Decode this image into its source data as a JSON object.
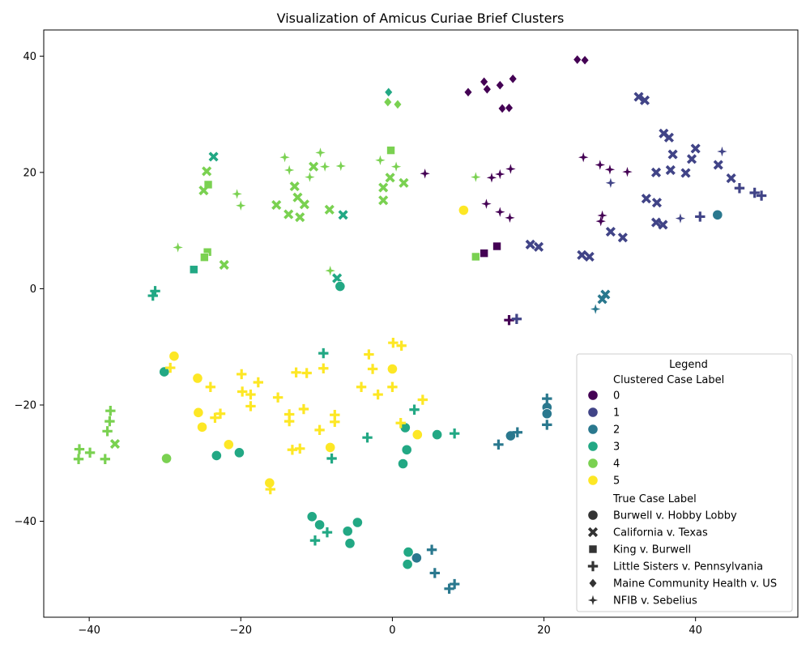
{
  "chart_data": {
    "type": "scatter",
    "title": "Visualization of Amicus Curiae Brief Clusters",
    "xlabel": "",
    "ylabel": "",
    "xlim": [
      -46,
      53.5
    ],
    "ylim": [
      -56.5,
      44.5
    ],
    "x_ticks": [
      -40,
      -20,
      0,
      20,
      40
    ],
    "y_ticks": [
      -40,
      -20,
      0,
      20,
      40
    ],
    "grid": false,
    "legend": {
      "title": "Legend",
      "placement": "lower-right",
      "hue_title": "Clustered Case Label",
      "style_title": "True Case Label"
    },
    "clusters": [
      {
        "label": "0",
        "color": "#440154"
      },
      {
        "label": "1",
        "color": "#414487"
      },
      {
        "label": "2",
        "color": "#2a788e"
      },
      {
        "label": "3",
        "color": "#22a884"
      },
      {
        "label": "4",
        "color": "#7ad151"
      },
      {
        "label": "5",
        "color": "#fde725"
      }
    ],
    "cases": [
      {
        "label": "Burwell v. Hobby Lobby",
        "marker": "circle"
      },
      {
        "label": "California v. Texas",
        "marker": "x"
      },
      {
        "label": "King v. Burwell",
        "marker": "square"
      },
      {
        "label": "Little Sisters v. Pennsylvania",
        "marker": "plus"
      },
      {
        "label": "Maine Community Health v. US",
        "marker": "diamond"
      },
      {
        "label": "NFIB v. Sebelius",
        "marker": "star"
      }
    ],
    "points": [
      [
        24.4,
        39.4,
        0,
        4
      ],
      [
        25.4,
        39.3,
        0,
        4
      ],
      [
        15.9,
        36.1,
        0,
        4
      ],
      [
        12.1,
        35.6,
        0,
        4
      ],
      [
        14.2,
        35.0,
        0,
        4
      ],
      [
        12.5,
        34.3,
        0,
        4
      ],
      [
        10.0,
        33.8,
        0,
        4
      ],
      [
        14.5,
        31.0,
        0,
        4
      ],
      [
        15.4,
        31.1,
        0,
        4
      ],
      [
        25.2,
        22.6,
        0,
        5
      ],
      [
        27.4,
        21.3,
        0,
        5
      ],
      [
        28.7,
        20.5,
        0,
        5
      ],
      [
        31.0,
        20.1,
        0,
        5
      ],
      [
        15.6,
        20.6,
        0,
        5
      ],
      [
        14.2,
        19.7,
        0,
        5
      ],
      [
        13.1,
        19.1,
        0,
        5
      ],
      [
        4.3,
        19.8,
        0,
        5
      ],
      [
        12.4,
        14.6,
        0,
        5
      ],
      [
        14.2,
        13.2,
        0,
        5
      ],
      [
        15.5,
        12.2,
        0,
        5
      ],
      [
        27.7,
        12.6,
        0,
        5
      ],
      [
        27.5,
        11.6,
        0,
        5
      ],
      [
        12.1,
        6.1,
        0,
        2
      ],
      [
        13.8,
        7.3,
        0,
        2
      ],
      [
        15.4,
        -5.4,
        0,
        3
      ],
      [
        32.5,
        33.0,
        1,
        1
      ],
      [
        33.3,
        32.4,
        1,
        1
      ],
      [
        35.8,
        26.7,
        1,
        1
      ],
      [
        36.5,
        26.0,
        1,
        1
      ],
      [
        37.0,
        23.1,
        1,
        1
      ],
      [
        40.0,
        24.1,
        1,
        1
      ],
      [
        39.5,
        22.3,
        1,
        1
      ],
      [
        34.8,
        20.0,
        1,
        1
      ],
      [
        36.7,
        20.4,
        1,
        1
      ],
      [
        38.7,
        19.9,
        1,
        1
      ],
      [
        43.0,
        21.3,
        1,
        1
      ],
      [
        44.7,
        19.0,
        1,
        1
      ],
      [
        43.5,
        23.6,
        1,
        5
      ],
      [
        28.8,
        18.2,
        1,
        5
      ],
      [
        33.5,
        15.5,
        1,
        1
      ],
      [
        34.9,
        14.8,
        1,
        1
      ],
      [
        34.8,
        11.4,
        1,
        1
      ],
      [
        35.7,
        11.0,
        1,
        1
      ],
      [
        38.0,
        12.1,
        1,
        5
      ],
      [
        40.6,
        12.4,
        1,
        3
      ],
      [
        45.8,
        17.3,
        1,
        3
      ],
      [
        47.8,
        16.5,
        1,
        3
      ],
      [
        48.7,
        16.0,
        1,
        3
      ],
      [
        18.2,
        7.6,
        1,
        1
      ],
      [
        19.3,
        7.2,
        1,
        1
      ],
      [
        25.0,
        5.8,
        1,
        1
      ],
      [
        26.0,
        5.5,
        1,
        1
      ],
      [
        28.8,
        9.8,
        1,
        1
      ],
      [
        30.4,
        8.8,
        1,
        1
      ],
      [
        16.4,
        -5.2,
        1,
        3
      ],
      [
        42.9,
        12.7,
        2,
        0
      ],
      [
        28.1,
        -1.0,
        2,
        1
      ],
      [
        27.7,
        -1.8,
        2,
        1
      ],
      [
        26.8,
        -3.5,
        2,
        5
      ],
      [
        20.4,
        -20.4,
        2,
        0
      ],
      [
        20.4,
        -21.5,
        2,
        0
      ],
      [
        15.6,
        -25.3,
        2,
        0
      ],
      [
        3.2,
        -46.3,
        2,
        0
      ],
      [
        20.4,
        -18.9,
        2,
        3
      ],
      [
        20.4,
        -23.4,
        2,
        3
      ],
      [
        16.5,
        -24.7,
        2,
        3
      ],
      [
        14.0,
        -26.8,
        2,
        3
      ],
      [
        5.2,
        -44.9,
        2,
        3
      ],
      [
        5.6,
        -48.9,
        2,
        3
      ],
      [
        8.2,
        -50.8,
        2,
        3
      ],
      [
        7.5,
        -51.6,
        2,
        3
      ],
      [
        -0.5,
        33.8,
        3,
        4
      ],
      [
        -23.6,
        22.7,
        3,
        1
      ],
      [
        -6.5,
        12.7,
        3,
        1
      ],
      [
        -7.3,
        1.8,
        3,
        1
      ],
      [
        -26.2,
        3.3,
        3,
        2
      ],
      [
        -31.3,
        -0.4,
        3,
        3
      ],
      [
        -31.6,
        -1.2,
        3,
        3
      ],
      [
        -6.9,
        0.4,
        3,
        0
      ],
      [
        -30.1,
        -14.3,
        3,
        0
      ],
      [
        -20.2,
        -28.2,
        3,
        0
      ],
      [
        -23.2,
        -28.7,
        3,
        0
      ],
      [
        1.7,
        -23.9,
        3,
        0
      ],
      [
        1.9,
        -27.7,
        3,
        0
      ],
      [
        1.4,
        -30.1,
        3,
        0
      ],
      [
        5.9,
        -25.1,
        3,
        0
      ],
      [
        -4.6,
        -40.2,
        3,
        0
      ],
      [
        -10.6,
        -39.2,
        3,
        0
      ],
      [
        -9.6,
        -40.6,
        3,
        0
      ],
      [
        -5.9,
        -41.7,
        3,
        0
      ],
      [
        -5.6,
        -43.8,
        3,
        0
      ],
      [
        2.1,
        -45.3,
        3,
        0
      ],
      [
        2.0,
        -47.4,
        3,
        0
      ],
      [
        -9.1,
        -11.1,
        3,
        3
      ],
      [
        2.9,
        -20.8,
        3,
        3
      ],
      [
        8.2,
        -24.9,
        3,
        3
      ],
      [
        -3.3,
        -25.6,
        3,
        3
      ],
      [
        -8.0,
        -29.2,
        3,
        3
      ],
      [
        -8.6,
        -41.9,
        3,
        3
      ],
      [
        -10.2,
        -43.3,
        3,
        3
      ],
      [
        -0.6,
        32.1,
        4,
        4
      ],
      [
        0.7,
        31.7,
        4,
        4
      ],
      [
        -0.2,
        23.8,
        4,
        2
      ],
      [
        -24.3,
        17.9,
        4,
        2
      ],
      [
        -24.4,
        6.3,
        4,
        2
      ],
      [
        -24.8,
        5.4,
        4,
        2
      ],
      [
        11.0,
        5.5,
        4,
        2
      ],
      [
        -24.5,
        20.2,
        4,
        1
      ],
      [
        -24.9,
        16.9,
        4,
        1
      ],
      [
        -10.4,
        21.0,
        4,
        1
      ],
      [
        -12.9,
        17.6,
        4,
        1
      ],
      [
        -12.5,
        15.7,
        4,
        1
      ],
      [
        -11.6,
        14.5,
        4,
        1
      ],
      [
        -15.3,
        14.4,
        4,
        1
      ],
      [
        -13.7,
        12.8,
        4,
        1
      ],
      [
        -12.2,
        12.3,
        4,
        1
      ],
      [
        -8.3,
        13.6,
        4,
        1
      ],
      [
        -1.2,
        17.4,
        4,
        1
      ],
      [
        -1.2,
        15.2,
        4,
        1
      ],
      [
        -0.3,
        19.1,
        4,
        1
      ],
      [
        1.5,
        18.2,
        4,
        1
      ],
      [
        -22.2,
        4.1,
        4,
        1
      ],
      [
        -36.6,
        -26.7,
        4,
        1
      ],
      [
        -14.2,
        22.6,
        4,
        5
      ],
      [
        -13.6,
        20.4,
        4,
        5
      ],
      [
        -9.5,
        23.4,
        4,
        5
      ],
      [
        -8.9,
        21.0,
        4,
        5
      ],
      [
        -6.8,
        21.1,
        4,
        5
      ],
      [
        -10.9,
        19.2,
        4,
        5
      ],
      [
        -1.6,
        22.1,
        4,
        5
      ],
      [
        0.5,
        21.0,
        4,
        5
      ],
      [
        -20.5,
        16.3,
        4,
        5
      ],
      [
        -20.0,
        14.3,
        4,
        5
      ],
      [
        -28.3,
        7.1,
        4,
        5
      ],
      [
        -8.2,
        3.1,
        4,
        5
      ],
      [
        11.0,
        19.2,
        4,
        5
      ],
      [
        -29.8,
        -29.2,
        4,
        0
      ],
      [
        -37.2,
        -21.0,
        4,
        3
      ],
      [
        -37.3,
        -22.8,
        4,
        3
      ],
      [
        -37.6,
        -24.5,
        4,
        3
      ],
      [
        -41.3,
        -27.6,
        4,
        3
      ],
      [
        -41.4,
        -29.3,
        4,
        3
      ],
      [
        -39.9,
        -28.2,
        4,
        3
      ],
      [
        -37.9,
        -29.3,
        4,
        3
      ],
      [
        9.4,
        13.5,
        5,
        0
      ],
      [
        -28.8,
        -11.6,
        5,
        0
      ],
      [
        -25.7,
        -15.4,
        5,
        0
      ],
      [
        -25.6,
        -21.3,
        5,
        0
      ],
      [
        -25.1,
        -23.8,
        5,
        0
      ],
      [
        -21.6,
        -26.8,
        5,
        0
      ],
      [
        -8.2,
        -27.3,
        5,
        0
      ],
      [
        -16.2,
        -33.4,
        5,
        0
      ],
      [
        0.0,
        -13.8,
        5,
        0
      ],
      [
        3.3,
        -25.1,
        5,
        0
      ],
      [
        -29.3,
        -13.6,
        5,
        3
      ],
      [
        -24.0,
        -16.9,
        5,
        3
      ],
      [
        -23.4,
        -22.2,
        5,
        3
      ],
      [
        -22.7,
        -21.5,
        5,
        3
      ],
      [
        -19.9,
        -14.7,
        5,
        3
      ],
      [
        -17.7,
        -16.1,
        5,
        3
      ],
      [
        -19.8,
        -17.7,
        5,
        3
      ],
      [
        -18.7,
        -18.2,
        5,
        3
      ],
      [
        -18.7,
        -20.2,
        5,
        3
      ],
      [
        -15.1,
        -18.7,
        5,
        3
      ],
      [
        -12.7,
        -14.4,
        5,
        3
      ],
      [
        -11.3,
        -14.5,
        5,
        3
      ],
      [
        -9.1,
        -13.7,
        5,
        3
      ],
      [
        -13.6,
        -21.6,
        5,
        3
      ],
      [
        -13.6,
        -22.8,
        5,
        3
      ],
      [
        -11.7,
        -20.7,
        5,
        3
      ],
      [
        -9.6,
        -24.3,
        5,
        3
      ],
      [
        -7.6,
        -21.7,
        5,
        3
      ],
      [
        -7.6,
        -22.9,
        5,
        3
      ],
      [
        -13.2,
        -27.7,
        5,
        3
      ],
      [
        -12.2,
        -27.5,
        5,
        3
      ],
      [
        -16.1,
        -34.5,
        5,
        3
      ],
      [
        -3.1,
        -11.3,
        5,
        3
      ],
      [
        -2.6,
        -13.8,
        5,
        3
      ],
      [
        -4.1,
        -16.9,
        5,
        3
      ],
      [
        -1.9,
        -18.2,
        5,
        3
      ],
      [
        0.0,
        -16.9,
        5,
        3
      ],
      [
        0.1,
        -9.3,
        5,
        3
      ],
      [
        1.2,
        -9.8,
        5,
        3
      ],
      [
        1.1,
        -23.1,
        5,
        3
      ],
      [
        4.0,
        -19.1,
        5,
        3
      ]
    ]
  }
}
